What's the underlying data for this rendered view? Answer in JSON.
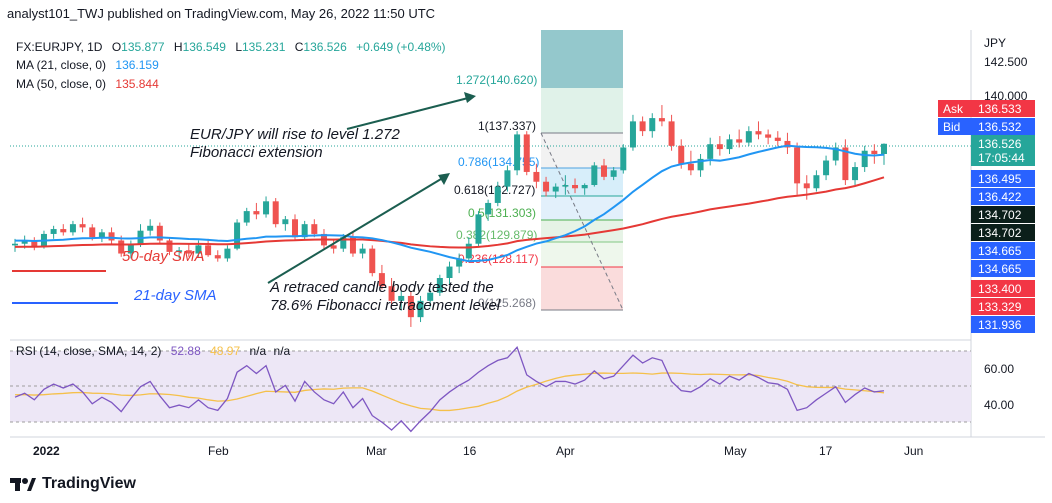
{
  "header": {
    "published": "analyst101_TWJ published on TradingView.com, May 26, 2022 11:50 UTC"
  },
  "legend": {
    "symbol": "FX:EURJPY, 1D",
    "o_label": "O",
    "o": "135.877",
    "h_label": "H",
    "h": "136.549",
    "l_label": "L",
    "l": "135.231",
    "c_label": "C",
    "c": "136.526",
    "change": "+0.649 (+0.48%)",
    "ma21_label": "MA (21, close, 0)",
    "ma21": "136.159",
    "ma50_label": "MA (50, close, 0)",
    "ma50": "135.844"
  },
  "annotations": {
    "rise": "EUR/JPY will rise to level 1.272",
    "rise2": "Fibonacci extension",
    "retraced": "A retraced candle body tested the",
    "retraced2": "78.6% Fibonacci retracement level",
    "sma50": "50-day SMA",
    "sma21": "21-day SMA"
  },
  "fib_levels": [
    {
      "label": "1.272(140.620)",
      "price": 140.62
    },
    {
      "label": "1(137.337)",
      "price": 137.337
    },
    {
      "label": "0.786(134.755)",
      "price": 134.755
    },
    {
      "label": "0.618(132.727)",
      "price": 132.727
    },
    {
      "label": "0.5(131.303)",
      "price": 131.303
    },
    {
      "label": "0.382(129.879)",
      "price": 129.879
    },
    {
      "label": "0.236(128.117)",
      "price": 128.117
    },
    {
      "label": "0(125.268)",
      "price": 125.268
    }
  ],
  "price_axis": {
    "currency": "JPY",
    "ticks": [
      "142.500",
      "140.000"
    ],
    "badges": [
      {
        "label": "Ask",
        "value": "136.533",
        "color": "#f23645"
      },
      {
        "label": "Bid",
        "value": "136.532",
        "color": "#2962ff"
      },
      {
        "label": "",
        "value": "136.526",
        "sub": "17:05:44",
        "color": "#26a69a"
      },
      {
        "label": "",
        "value": "136.495",
        "color": "#2962ff"
      },
      {
        "label": "",
        "value": "136.422",
        "color": "#2962ff"
      },
      {
        "label": "",
        "value": "134.702",
        "color": "#0b1f1a"
      },
      {
        "label": "",
        "value": "134.702",
        "color": "#0b1f1a"
      },
      {
        "label": "",
        "value": "134.665",
        "color": "#2962ff"
      },
      {
        "label": "",
        "value": "134.665",
        "color": "#2962ff"
      },
      {
        "label": "",
        "value": "133.400",
        "color": "#f23645"
      },
      {
        "label": "",
        "value": "133.329",
        "color": "#f23645"
      },
      {
        "label": "",
        "value": "131.936",
        "color": "#2962ff"
      }
    ]
  },
  "rsi": {
    "label": "RSI (14, close, SMA, 14, 2)",
    "value1": "52.88",
    "value2": "48.97",
    "value3": "n/a",
    "value4": "n/a",
    "ticks": [
      "60.00",
      "40.00"
    ]
  },
  "time_axis": [
    "2022",
    "Feb",
    "Mar",
    "16",
    "Apr",
    "May",
    "17",
    "Jun"
  ],
  "footer": {
    "brand": "TradingView"
  },
  "colors": {
    "up": "#26a69a",
    "down": "#ef5350",
    "ma21": "#2196f3",
    "ma50": "#e53935",
    "rsi": "#7e57c2",
    "rsi_ma": "#f5c04a"
  },
  "chart_data": {
    "type": "candlestick",
    "symbol": "FX:EURJPY",
    "interval": "1D",
    "y_range": [
      124.5,
      143.5
    ],
    "ohlc": [
      [
        130.3,
        130.7,
        129.9,
        130.4
      ],
      [
        130.4,
        130.9,
        130.1,
        130.6
      ],
      [
        130.6,
        130.8,
        130.0,
        130.2
      ],
      [
        130.2,
        131.2,
        130.1,
        131.0
      ],
      [
        131.0,
        131.5,
        130.7,
        131.3
      ],
      [
        131.3,
        131.6,
        130.9,
        131.1
      ],
      [
        131.1,
        131.8,
        130.9,
        131.6
      ],
      [
        131.6,
        132.0,
        131.1,
        131.4
      ],
      [
        131.4,
        131.6,
        130.6,
        130.8
      ],
      [
        130.8,
        131.3,
        130.5,
        131.1
      ],
      [
        131.1,
        131.4,
        130.4,
        130.6
      ],
      [
        130.6,
        130.9,
        129.6,
        129.8
      ],
      [
        129.8,
        130.6,
        129.5,
        130.4
      ],
      [
        130.4,
        131.6,
        130.2,
        131.2
      ],
      [
        131.2,
        131.9,
        130.9,
        131.5
      ],
      [
        131.5,
        131.7,
        130.4,
        130.6
      ],
      [
        130.6,
        130.8,
        129.7,
        129.9
      ],
      [
        129.9,
        130.2,
        129.5,
        130.0
      ],
      [
        130.0,
        130.4,
        129.6,
        129.8
      ],
      [
        129.8,
        130.6,
        129.6,
        130.3
      ],
      [
        130.3,
        130.7,
        129.6,
        129.7
      ],
      [
        129.7,
        130.0,
        129.3,
        129.5
      ],
      [
        129.5,
        130.3,
        129.3,
        130.1
      ],
      [
        130.1,
        131.9,
        130.0,
        131.7
      ],
      [
        131.7,
        132.6,
        131.5,
        132.4
      ],
      [
        132.4,
        132.9,
        131.9,
        132.2
      ],
      [
        132.2,
        133.3,
        132.0,
        133.0
      ],
      [
        133.0,
        133.2,
        131.4,
        131.6
      ],
      [
        131.6,
        132.1,
        131.2,
        131.9
      ],
      [
        131.9,
        132.2,
        130.6,
        130.8
      ],
      [
        130.8,
        131.8,
        130.6,
        131.6
      ],
      [
        131.6,
        131.9,
        130.8,
        131.0
      ],
      [
        131.0,
        131.3,
        130.1,
        130.3
      ],
      [
        130.3,
        130.7,
        129.8,
        130.1
      ],
      [
        130.1,
        131.0,
        129.9,
        130.8
      ],
      [
        130.8,
        131.1,
        129.6,
        129.8
      ],
      [
        129.8,
        130.4,
        129.5,
        130.1
      ],
      [
        130.1,
        130.3,
        128.4,
        128.6
      ],
      [
        128.6,
        129.1,
        127.6,
        127.8
      ],
      [
        127.8,
        128.3,
        126.5,
        126.9
      ],
      [
        126.9,
        127.5,
        126.3,
        127.2
      ],
      [
        127.2,
        127.5,
        125.3,
        125.9
      ],
      [
        125.9,
        127.2,
        125.6,
        126.9
      ],
      [
        126.9,
        127.6,
        126.5,
        127.4
      ],
      [
        127.4,
        128.5,
        127.2,
        128.3
      ],
      [
        128.3,
        129.3,
        127.9,
        129.0
      ],
      [
        129.0,
        129.8,
        128.6,
        129.5
      ],
      [
        129.5,
        130.8,
        129.3,
        130.4
      ],
      [
        130.4,
        132.4,
        130.2,
        132.2
      ],
      [
        132.2,
        133.1,
        131.8,
        132.9
      ],
      [
        132.9,
        134.2,
        132.7,
        133.9
      ],
      [
        133.9,
        135.2,
        133.6,
        134.9
      ],
      [
        134.9,
        137.3,
        134.6,
        137.1
      ],
      [
        137.1,
        137.3,
        134.6,
        134.8
      ],
      [
        134.8,
        135.3,
        133.8,
        134.2
      ],
      [
        134.2,
        134.5,
        133.3,
        133.6
      ],
      [
        133.6,
        134.1,
        133.2,
        133.9
      ],
      [
        133.9,
        134.6,
        133.4,
        134.0
      ],
      [
        134.0,
        134.4,
        133.5,
        133.8
      ],
      [
        133.8,
        134.1,
        133.4,
        134.0
      ],
      [
        134.0,
        135.4,
        133.9,
        135.2
      ],
      [
        135.2,
        135.6,
        134.3,
        134.5
      ],
      [
        134.5,
        135.1,
        134.3,
        134.9
      ],
      [
        134.9,
        136.5,
        134.7,
        136.3
      ],
      [
        136.3,
        138.3,
        136.1,
        137.9
      ],
      [
        137.9,
        138.2,
        137.0,
        137.3
      ],
      [
        137.3,
        138.4,
        136.9,
        138.1
      ],
      [
        138.1,
        138.9,
        137.6,
        137.9
      ],
      [
        137.9,
        138.3,
        136.1,
        136.4
      ],
      [
        136.4,
        136.8,
        135.0,
        135.3
      ],
      [
        135.3,
        136.1,
        134.6,
        134.9
      ],
      [
        134.9,
        135.9,
        134.5,
        135.6
      ],
      [
        135.6,
        136.9,
        135.2,
        136.5
      ],
      [
        136.5,
        137.0,
        135.8,
        136.2
      ],
      [
        136.2,
        137.1,
        135.9,
        136.8
      ],
      [
        136.8,
        137.4,
        136.3,
        136.6
      ],
      [
        136.6,
        137.6,
        136.4,
        137.3
      ],
      [
        137.3,
        137.9,
        136.8,
        137.1
      ],
      [
        137.1,
        137.4,
        136.5,
        136.9
      ],
      [
        136.9,
        137.3,
        136.4,
        136.7
      ],
      [
        136.7,
        137.2,
        135.9,
        136.3
      ],
      [
        136.3,
        136.6,
        133.4,
        134.1
      ],
      [
        134.1,
        134.6,
        133.1,
        133.8
      ],
      [
        133.8,
        134.9,
        133.6,
        134.6
      ],
      [
        134.6,
        135.8,
        134.3,
        135.5
      ],
      [
        135.5,
        136.6,
        135.2,
        136.3
      ],
      [
        136.3,
        136.8,
        134.0,
        134.3
      ],
      [
        134.3,
        135.4,
        134.0,
        135.1
      ],
      [
        135.1,
        136.4,
        134.8,
        136.1
      ],
      [
        136.1,
        136.5,
        135.3,
        135.9
      ],
      [
        135.9,
        136.549,
        135.231,
        136.526
      ]
    ],
    "ma21_last": 136.159,
    "ma50_last": 135.844,
    "fib_retracement": {
      "high": 137.337,
      "low": 125.268,
      "levels": [
        0,
        0.236,
        0.382,
        0.5,
        0.618,
        0.786,
        1
      ]
    },
    "fib_extension_target": 140.62,
    "rsi_range": [
      20,
      90
    ],
    "rsi": [
      48,
      51,
      46,
      54,
      58,
      55,
      58,
      52,
      43,
      48,
      44,
      37,
      47,
      56,
      60,
      49,
      40,
      42,
      40,
      46,
      40,
      38,
      47,
      67,
      72,
      66,
      72,
      52,
      57,
      45,
      60,
      52,
      46,
      43,
      52,
      40,
      47,
      34,
      29,
      23,
      30,
      22,
      30,
      37,
      46,
      52,
      57,
      61,
      67,
      72,
      76,
      78,
      86,
      65,
      60,
      56,
      60,
      60,
      58,
      61,
      68,
      62,
      64,
      72,
      80,
      74,
      78,
      76,
      60,
      53,
      52,
      56,
      62,
      58,
      64,
      61,
      66,
      63,
      59,
      58,
      54,
      38,
      40,
      46,
      51,
      56,
      44,
      50,
      55,
      52,
      52.88
    ],
    "rsi_ma_last": 48.97
  }
}
